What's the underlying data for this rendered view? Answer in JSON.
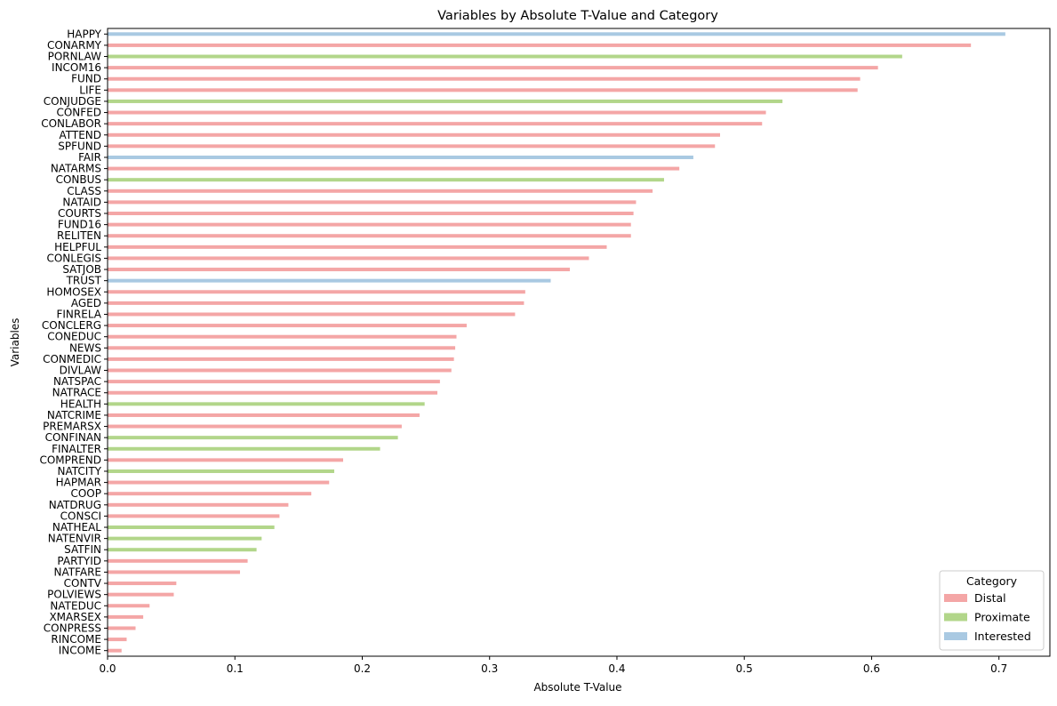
{
  "chart_data": {
    "type": "bar",
    "orientation": "horizontal",
    "title": "Variables by Absolute T-Value and Category",
    "xlabel": "Absolute T-Value",
    "ylabel": "Variables",
    "xlim": [
      0,
      0.74
    ],
    "xticks": [
      0.0,
      0.1,
      0.2,
      0.3,
      0.4,
      0.5,
      0.6,
      0.7
    ],
    "xtick_labels": [
      "0.0",
      "0.1",
      "0.2",
      "0.3",
      "0.4",
      "0.5",
      "0.6",
      "0.7"
    ],
    "grid": false,
    "legend": {
      "title": "Category",
      "placement": "bottom-right",
      "entries": [
        {
          "label": "Distal",
          "color": "#f4a6a6"
        },
        {
          "label": "Proximate",
          "color": "#b2d68a"
        },
        {
          "label": "Interested",
          "color": "#a9c9e2"
        }
      ]
    },
    "category_colors": {
      "Distal": "#f4a6a6",
      "Proximate": "#b2d68a",
      "Interested": "#a9c9e2"
    },
    "bars": [
      {
        "label": "HAPPY",
        "category": "Interested",
        "value": 0.705
      },
      {
        "label": "CONARMY",
        "category": "Distal",
        "value": 0.678
      },
      {
        "label": "PORNLAW",
        "category": "Proximate",
        "value": 0.624
      },
      {
        "label": "INCOM16",
        "category": "Distal",
        "value": 0.605
      },
      {
        "label": "FUND",
        "category": "Distal",
        "value": 0.591
      },
      {
        "label": "LIFE",
        "category": "Distal",
        "value": 0.589
      },
      {
        "label": "CONJUDGE",
        "category": "Proximate",
        "value": 0.53
      },
      {
        "label": "CONFED",
        "category": "Distal",
        "value": 0.517
      },
      {
        "label": "CONLABOR",
        "category": "Distal",
        "value": 0.514
      },
      {
        "label": "ATTEND",
        "category": "Distal",
        "value": 0.481
      },
      {
        "label": "SPFUND",
        "category": "Distal",
        "value": 0.477
      },
      {
        "label": "FAIR",
        "category": "Interested",
        "value": 0.46
      },
      {
        "label": "NATARMS",
        "category": "Distal",
        "value": 0.449
      },
      {
        "label": "CONBUS",
        "category": "Proximate",
        "value": 0.437
      },
      {
        "label": "CLASS",
        "category": "Distal",
        "value": 0.428
      },
      {
        "label": "NATAID",
        "category": "Distal",
        "value": 0.415
      },
      {
        "label": "COURTS",
        "category": "Distal",
        "value": 0.413
      },
      {
        "label": "FUND16",
        "category": "Distal",
        "value": 0.411
      },
      {
        "label": "RELITEN",
        "category": "Distal",
        "value": 0.411
      },
      {
        "label": "HELPFUL",
        "category": "Distal",
        "value": 0.392
      },
      {
        "label": "CONLEGIS",
        "category": "Distal",
        "value": 0.378
      },
      {
        "label": "SATJOB",
        "category": "Distal",
        "value": 0.363
      },
      {
        "label": "TRUST",
        "category": "Interested",
        "value": 0.348
      },
      {
        "label": "HOMOSEX",
        "category": "Distal",
        "value": 0.328
      },
      {
        "label": "AGED",
        "category": "Distal",
        "value": 0.327
      },
      {
        "label": "FINRELA",
        "category": "Distal",
        "value": 0.32
      },
      {
        "label": "CONCLERG",
        "category": "Distal",
        "value": 0.282
      },
      {
        "label": "CONEDUC",
        "category": "Distal",
        "value": 0.274
      },
      {
        "label": "NEWS",
        "category": "Distal",
        "value": 0.273
      },
      {
        "label": "CONMEDIC",
        "category": "Distal",
        "value": 0.272
      },
      {
        "label": "DIVLAW",
        "category": "Distal",
        "value": 0.27
      },
      {
        "label": "NATSPAC",
        "category": "Distal",
        "value": 0.261
      },
      {
        "label": "NATRACE",
        "category": "Distal",
        "value": 0.259
      },
      {
        "label": "HEALTH",
        "category": "Proximate",
        "value": 0.249
      },
      {
        "label": "NATCRIME",
        "category": "Distal",
        "value": 0.245
      },
      {
        "label": "PREMARSX",
        "category": "Distal",
        "value": 0.231
      },
      {
        "label": "CONFINAN",
        "category": "Proximate",
        "value": 0.228
      },
      {
        "label": "FINALTER",
        "category": "Proximate",
        "value": 0.214
      },
      {
        "label": "COMPREND",
        "category": "Distal",
        "value": 0.185
      },
      {
        "label": "NATCITY",
        "category": "Proximate",
        "value": 0.178
      },
      {
        "label": "HAPMAR",
        "category": "Distal",
        "value": 0.174
      },
      {
        "label": "COOP",
        "category": "Distal",
        "value": 0.16
      },
      {
        "label": "NATDRUG",
        "category": "Distal",
        "value": 0.142
      },
      {
        "label": "CONSCI",
        "category": "Distal",
        "value": 0.135
      },
      {
        "label": "NATHEAL",
        "category": "Proximate",
        "value": 0.131
      },
      {
        "label": "NATENVIR",
        "category": "Proximate",
        "value": 0.121
      },
      {
        "label": "SATFIN",
        "category": "Proximate",
        "value": 0.117
      },
      {
        "label": "PARTYID",
        "category": "Distal",
        "value": 0.11
      },
      {
        "label": "NATFARE",
        "category": "Distal",
        "value": 0.104
      },
      {
        "label": "CONTV",
        "category": "Distal",
        "value": 0.054
      },
      {
        "label": "POLVIEWS",
        "category": "Distal",
        "value": 0.052
      },
      {
        "label": "NATEDUC",
        "category": "Distal",
        "value": 0.033
      },
      {
        "label": "XMARSEX",
        "category": "Distal",
        "value": 0.028
      },
      {
        "label": "CONPRESS",
        "category": "Distal",
        "value": 0.022
      },
      {
        "label": "RINCOME",
        "category": "Distal",
        "value": 0.015
      },
      {
        "label": "INCOME",
        "category": "Distal",
        "value": 0.011
      }
    ]
  }
}
